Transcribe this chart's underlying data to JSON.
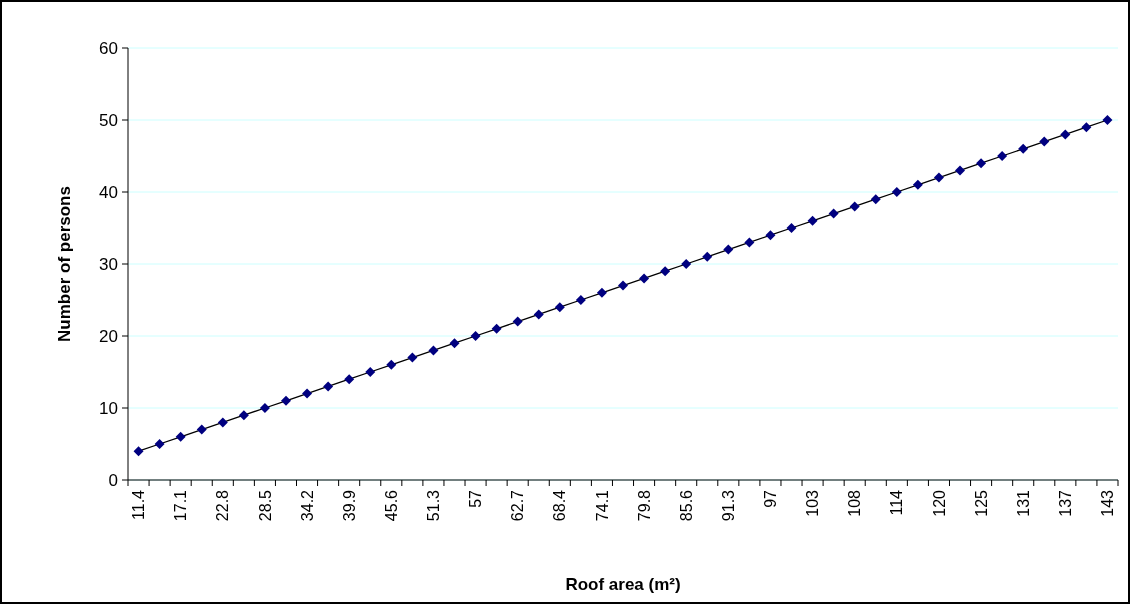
{
  "chart_data": {
    "type": "line",
    "xlabel": "Roof area (m²)",
    "ylabel": "Number of persons",
    "categories": [
      "11.4",
      null,
      "17.1",
      null,
      "22.8",
      null,
      "28.5",
      null,
      "34.2",
      null,
      "39.9",
      null,
      "45.6",
      null,
      "51.3",
      null,
      "57",
      null,
      "62.7",
      null,
      "68.4",
      null,
      "74.1",
      null,
      "79.8",
      null,
      "85.6",
      null,
      "91.3",
      null,
      "97",
      null,
      "103",
      null,
      "108",
      null,
      "114",
      null,
      "120",
      null,
      "125",
      null,
      "131",
      null,
      "137",
      null,
      "143"
    ],
    "series": [
      {
        "color": "#000080",
        "values": [
          4,
          5,
          6,
          7,
          8,
          9,
          10,
          11,
          12,
          13,
          14,
          15,
          16,
          17,
          18,
          19,
          20,
          21,
          22,
          23,
          24,
          25,
          26,
          27,
          28,
          29,
          30,
          31,
          32,
          33,
          34,
          35,
          36,
          37,
          38,
          39,
          40,
          41,
          42,
          43,
          44,
          45,
          46,
          47,
          48,
          49,
          50
        ]
      }
    ],
    "ylim": [
      0,
      60
    ],
    "yticks": [
      0,
      10,
      20,
      30,
      40,
      50,
      60
    ],
    "grid": "y",
    "marker": "diamond"
  }
}
